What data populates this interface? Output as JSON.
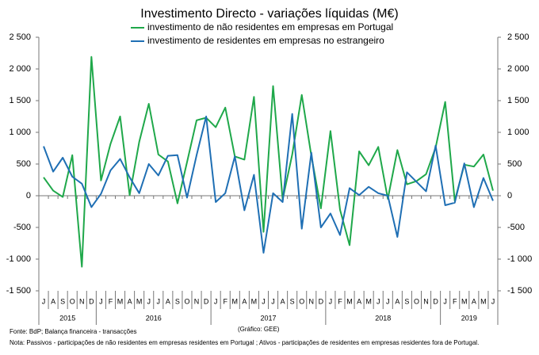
{
  "chart_data": {
    "type": "line",
    "title": "Investimento Directo - variações líquidas (M€)",
    "groups": [
      {
        "label": "2015",
        "categories": [
          "J",
          "A",
          "S",
          "O",
          "N",
          "D"
        ]
      },
      {
        "label": "2016",
        "categories": [
          "J",
          "F",
          "M",
          "A",
          "M",
          "J",
          "J",
          "A",
          "S",
          "O",
          "N",
          "D"
        ]
      },
      {
        "label": "2017",
        "categories": [
          "J",
          "F",
          "M",
          "A",
          "M",
          "J",
          "J",
          "A",
          "S",
          "O",
          "N",
          "D"
        ]
      },
      {
        "label": "2018",
        "categories": [
          "J",
          "F",
          "M",
          "A",
          "M",
          "J",
          "J",
          "A",
          "S",
          "O",
          "N",
          "D"
        ]
      },
      {
        "label": "2019",
        "categories": [
          "J",
          "F",
          "M",
          "A",
          "M",
          "J"
        ]
      }
    ],
    "series": [
      {
        "name": "investimento de não residentes em empresas em Portugal",
        "color": "#1fa84a",
        "values": [
          290,
          80,
          -20,
          640,
          -1120,
          2190,
          240,
          820,
          1250,
          10,
          850,
          1450,
          650,
          540,
          -120,
          530,
          1190,
          1230,
          1080,
          1390,
          620,
          570,
          1560,
          -570,
          1730,
          -60,
          650,
          1590,
          630,
          -200,
          1020,
          -220,
          -780,
          700,
          480,
          770,
          -50,
          720,
          180,
          230,
          340,
          760,
          1480,
          -80,
          490,
          460,
          650,
          80
        ]
      },
      {
        "name": "investimento de residentes em empresas no estrangeiro",
        "color": "#1f6fb4",
        "values": [
          780,
          380,
          600,
          300,
          190,
          -180,
          30,
          400,
          580,
          290,
          40,
          500,
          320,
          630,
          640,
          -30,
          640,
          1250,
          -100,
          40,
          620,
          -230,
          330,
          -900,
          40,
          -100,
          1290,
          -520,
          680,
          -500,
          -280,
          -620,
          120,
          10,
          140,
          40,
          0,
          -650,
          370,
          220,
          70,
          790,
          -150,
          -110,
          510,
          -180,
          280,
          -80
        ]
      }
    ],
    "ylim": [
      -1500,
      2500
    ],
    "yticks": [
      {
        "value": 2500,
        "label": "2 500"
      },
      {
        "value": 2000,
        "label": "2 000"
      },
      {
        "value": 1500,
        "label": "1 500"
      },
      {
        "value": 1000,
        "label": "1 000"
      },
      500,
      0,
      -500,
      {
        "value": -1000,
        "label": "-1 000"
      },
      {
        "value": -1500,
        "label": "-1 500"
      }
    ],
    "y2lim": [
      -1500,
      2500
    ],
    "y2ticks": [
      {
        "value": 2500,
        "label": "2 500"
      },
      {
        "value": 2000,
        "label": "2 000"
      },
      {
        "value": 1500,
        "label": "1 500"
      },
      {
        "value": 1000,
        "label": "1 000"
      },
      500,
      0,
      -500,
      {
        "value": -1000,
        "label": "-1 000"
      },
      {
        "value": -1500,
        "label": "-1 500"
      }
    ],
    "source": "Fonte: BdP; Balança financeira - transacções",
    "credit": "(Gráfico: GEE)",
    "note": "Nota: Passivos - participações de não residentes em empresas residentes em Portugal ; Ativos - participações de residentes em empresas residentes fora de Portugal."
  }
}
